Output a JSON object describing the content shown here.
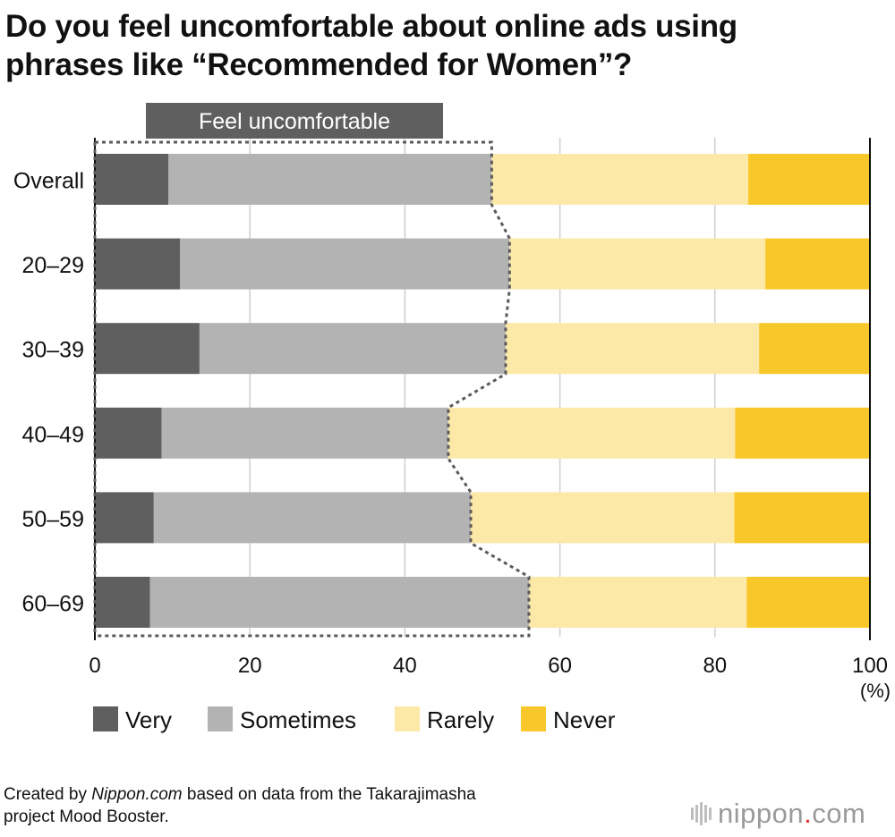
{
  "title": {
    "line1": "Do you feel uncomfortable about online ads using",
    "line2": "phrases like “Recommended for Women”?"
  },
  "chart_data": {
    "type": "bar",
    "orientation": "horizontal",
    "stacked": true,
    "title": "Do you feel uncomfortable about online ads using phrases like “Recommended for Women”?",
    "categories": [
      "Overall",
      "20–29",
      "30–39",
      "40–49",
      "50–59",
      "60–69"
    ],
    "series": [
      {
        "name": "Very",
        "color": "#5f5f5f",
        "values": [
          9.5,
          11.0,
          13.5,
          8.6,
          7.6,
          7.1
        ]
      },
      {
        "name": "Sometimes",
        "color": "#b3b3b3",
        "values": [
          41.7,
          42.5,
          39.5,
          37.0,
          40.9,
          48.9
        ]
      },
      {
        "name": "Rarely",
        "color": "#fce9a8",
        "values": [
          33.1,
          33.0,
          32.7,
          37.0,
          34.0,
          28.1
        ]
      },
      {
        "name": "Never",
        "color": "#f8c72a",
        "values": [
          15.7,
          13.5,
          14.3,
          17.4,
          17.5,
          15.9
        ]
      }
    ],
    "xlim": [
      0,
      100
    ],
    "xticks": [
      "0",
      "20",
      "40",
      "60",
      "80",
      "100"
    ],
    "unit_label": "(%)",
    "grid": true,
    "legend_placement": "bottom-left",
    "annotation": {
      "label": "Feel uncomfortable",
      "series_grouped": [
        "Very",
        "Sometimes"
      ],
      "style": "dotted outline"
    }
  },
  "source": {
    "prefix": "Created by ",
    "publisher": "Nippon.com",
    "suffix": " based on data from the Takarajimasha",
    "line2": "project Mood Booster."
  },
  "logo": {
    "word": "nippon",
    "dot": ".",
    "tld": "com"
  }
}
